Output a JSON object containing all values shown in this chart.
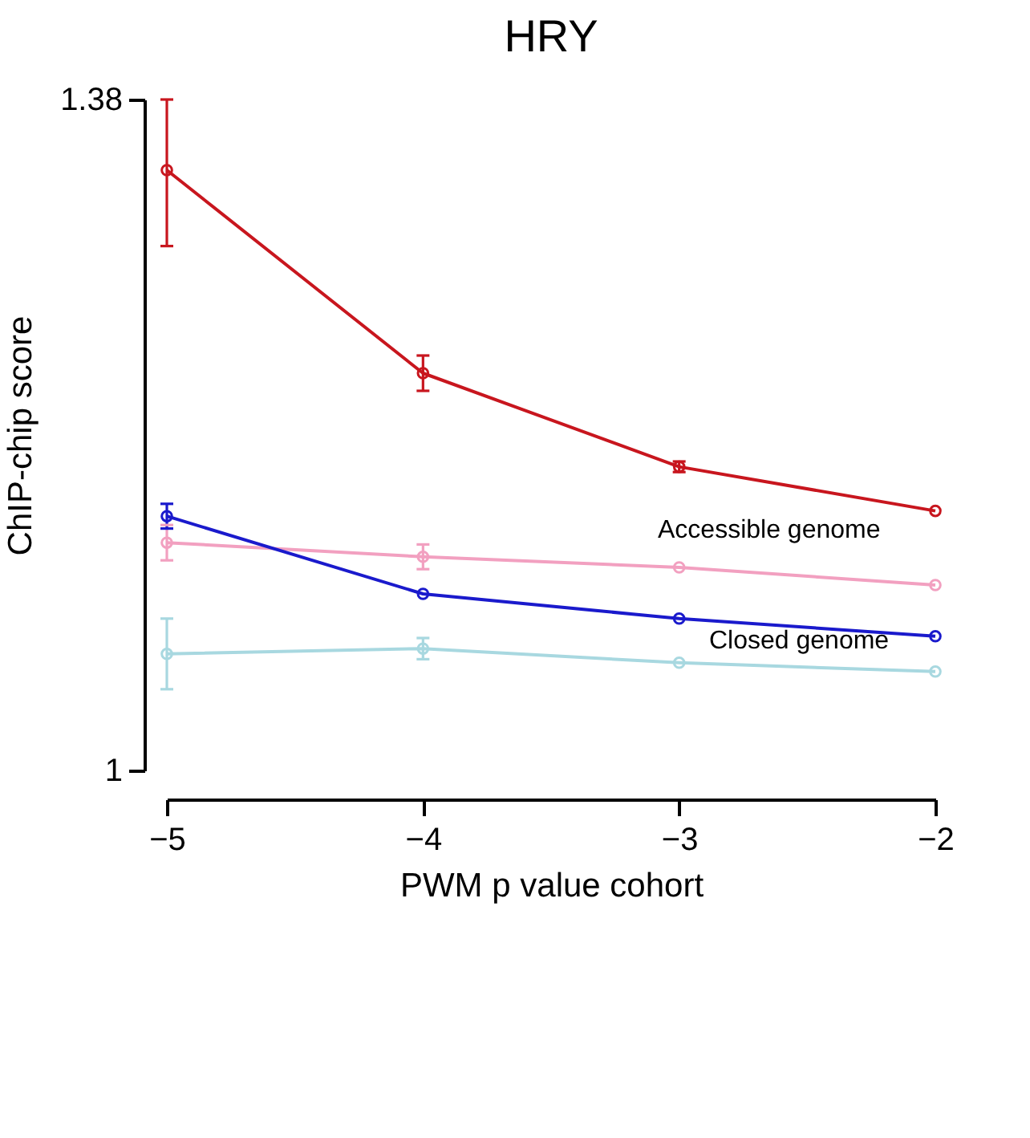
{
  "chart_data": {
    "type": "line",
    "title": "HRY",
    "xlabel": "PWM p value cohort",
    "ylabel": "ChIP-chip score",
    "x": [
      -5,
      -4,
      -3,
      -2
    ],
    "xlim": [
      -5,
      -2
    ],
    "xticks": [
      {
        "value": -5,
        "label": "−5"
      },
      {
        "value": -4,
        "label": "−4"
      },
      {
        "value": -3,
        "label": "−3"
      },
      {
        "value": -2,
        "label": "−2"
      }
    ],
    "ylim": [
      1,
      1.38
    ],
    "yticks": [
      1,
      1.38
    ],
    "grid": false,
    "legend": false,
    "marker": "circle",
    "line_style": "solid",
    "series": [
      {
        "color": "#f2a0c0",
        "values": [
          1.129,
          1.121,
          1.115,
          1.105
        ],
        "errors": [
          0.01,
          0.007,
          null,
          null
        ]
      },
      {
        "color": "#a8d8e0",
        "values": [
          1.066,
          1.069,
          1.061,
          1.056
        ],
        "errors": [
          0.02,
          0.006,
          null,
          null
        ]
      },
      {
        "color": "#c8161e",
        "values": [
          1.34,
          1.225,
          1.172,
          1.147
        ],
        "errors": [
          [
            1.297,
            1.38
          ],
          [
            1.215,
            1.235
          ],
          [
            1.169,
            1.175
          ],
          null
        ]
      },
      {
        "color": "#1a1acc",
        "values": [
          1.144,
          1.1,
          1.086,
          1.076
        ],
        "errors": [
          0.007,
          null,
          null,
          null
        ]
      }
    ],
    "annotations": [
      "Accessible genome",
      "Closed genome"
    ]
  }
}
